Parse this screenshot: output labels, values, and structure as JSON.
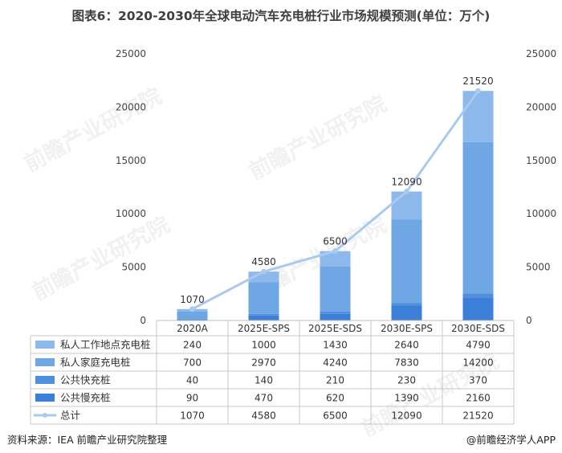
{
  "title": "图表6：2020-2030年全球电动汽车充电桩行业市场规模预测(单位：万个)",
  "source": "资料来源：IEA 前瞻产业研究院整理",
  "brand": "@前瞻经济学人APP",
  "watermark": "前瞻产业研究院",
  "colors": {
    "private_work": "#8cb8ec",
    "private_home": "#6fa6e4",
    "public_fast": "#4f8fdc",
    "public_slow": "#3b7fd8",
    "total": "#a9caef"
  },
  "chart_data": {
    "type": "bar",
    "stacked": true,
    "categories": [
      "2020A",
      "2025E-SPS",
      "2025E-SDS",
      "2030E-SPS",
      "2030E-SDS"
    ],
    "series": [
      {
        "key": "public_slow",
        "name": "公共慢充桩",
        "values": [
          90,
          470,
          620,
          1390,
          2160
        ]
      },
      {
        "key": "public_fast",
        "name": "公共快充桩",
        "values": [
          40,
          140,
          210,
          230,
          370
        ]
      },
      {
        "key": "private_home",
        "name": "私人家庭充电桩",
        "values": [
          700,
          2970,
          4240,
          7830,
          14200
        ]
      },
      {
        "key": "private_work",
        "name": "私人工作地点充电桩",
        "values": [
          240,
          1000,
          1430,
          2640,
          4790
        ]
      }
    ],
    "line": {
      "key": "total",
      "name": "总计",
      "values": [
        1070,
        4580,
        6500,
        12090,
        21520
      ]
    },
    "table_rows": [
      {
        "key": "private_work",
        "label": "私人工作地点充电桩",
        "marker": "square",
        "cells": [
          "240",
          "1000",
          "1430",
          "2640",
          "4790"
        ]
      },
      {
        "key": "private_home",
        "label": "私人家庭充电桩",
        "marker": "square",
        "cells": [
          "700",
          "2970",
          "4240",
          "7830",
          "14200"
        ]
      },
      {
        "key": "public_fast",
        "label": "公共快充桩",
        "marker": "square",
        "cells": [
          "40",
          "140",
          "210",
          "230",
          "370"
        ]
      },
      {
        "key": "public_slow",
        "label": "公共慢充桩",
        "marker": "square",
        "cells": [
          "90",
          "470",
          "620",
          "1390",
          "2160"
        ]
      },
      {
        "key": "total",
        "label": "总计",
        "marker": "line",
        "cells": [
          "1070",
          "4580",
          "6500",
          "12090",
          "21520"
        ]
      }
    ],
    "bar_labels": [
      "1070",
      "4580",
      "6500",
      "12090",
      "21520"
    ],
    "y_ticks": [
      "0",
      "5000",
      "10000",
      "15000",
      "20000",
      "25000"
    ],
    "y_right_ticks": [
      "0",
      "5000",
      "10000",
      "15000",
      "20000",
      "25000"
    ],
    "ylim": [
      0,
      25000
    ],
    "legend": "table-left"
  }
}
